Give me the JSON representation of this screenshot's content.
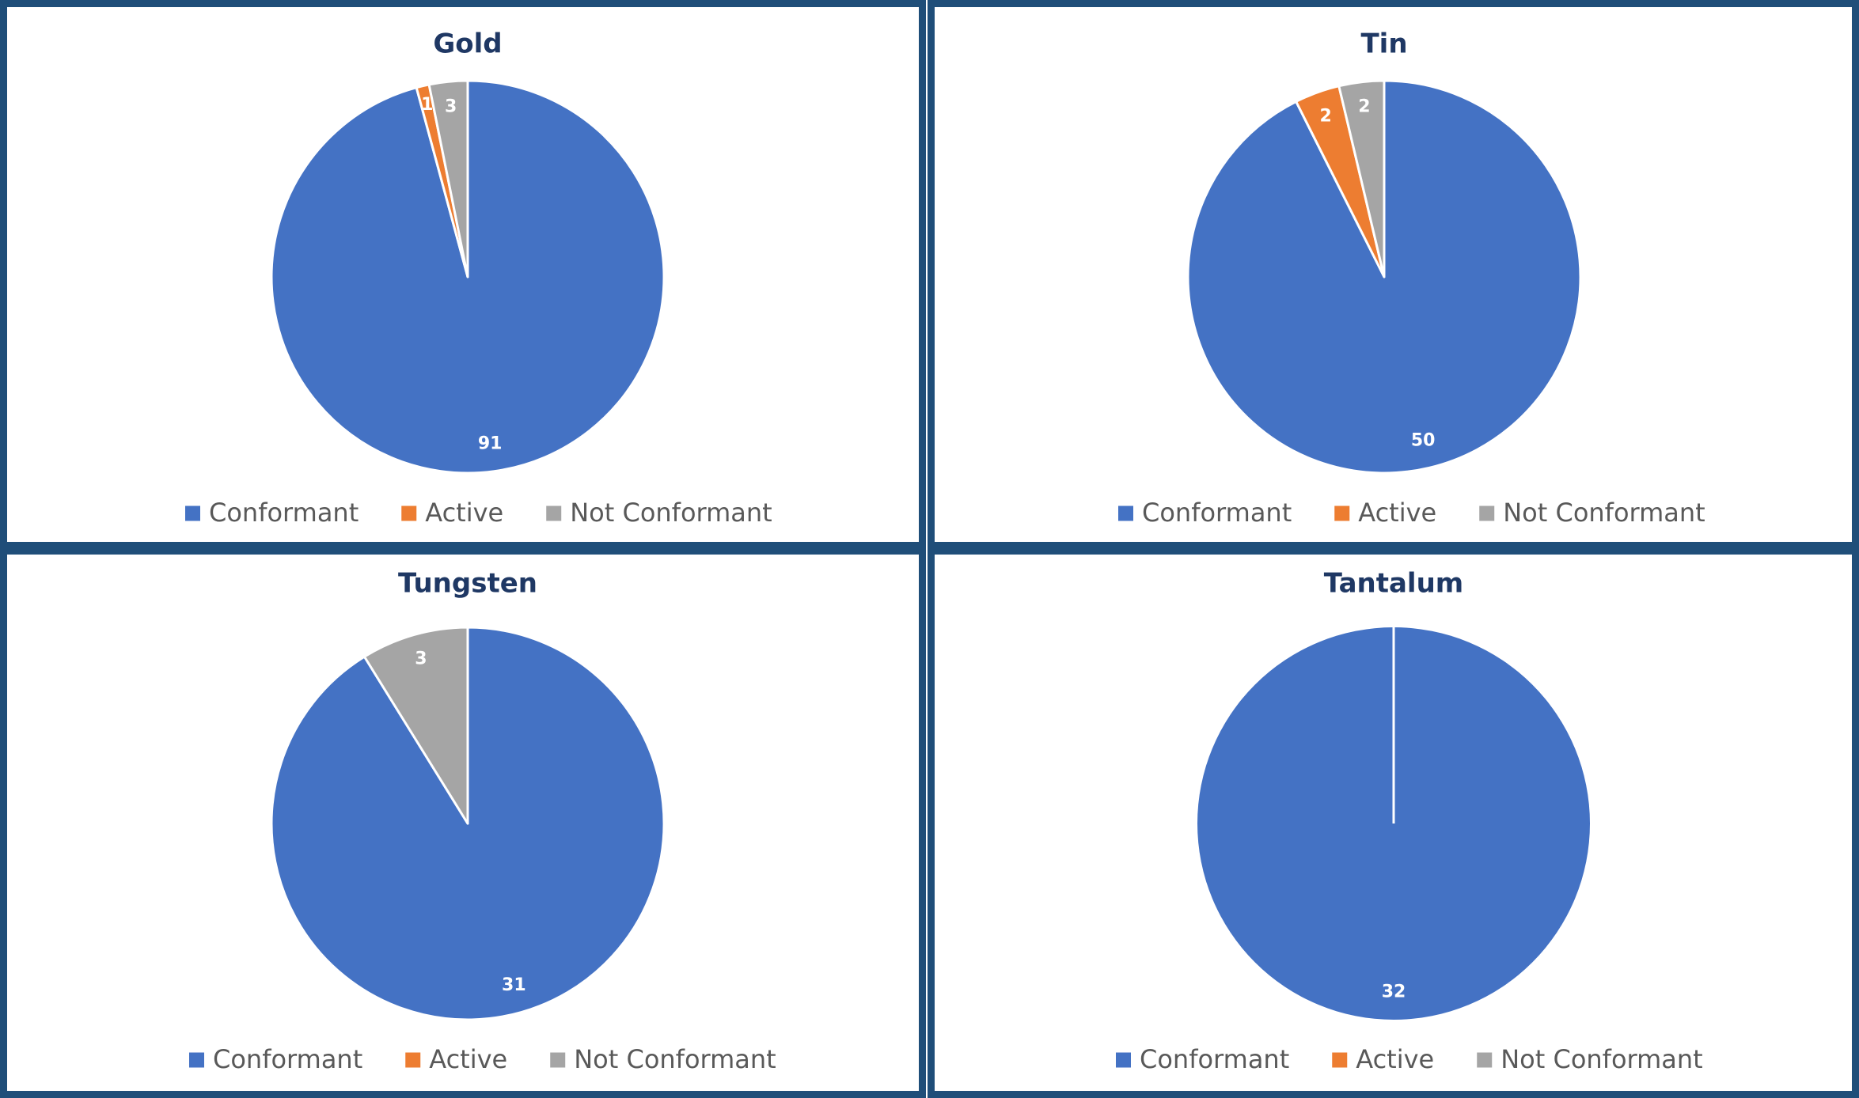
{
  "chart_data": [
    {
      "type": "pie",
      "title": "Gold",
      "categories": [
        "Conformant",
        "Active",
        "Not Conformant"
      ],
      "values": [
        91,
        1,
        3
      ],
      "colors": [
        "#4472c4",
        "#ed7d31",
        "#a5a5a5"
      ],
      "legend": "bottom"
    },
    {
      "type": "pie",
      "title": "Tin",
      "categories": [
        "Conformant",
        "Active",
        "Not Conformant"
      ],
      "values": [
        50,
        2,
        2
      ],
      "colors": [
        "#4472c4",
        "#ed7d31",
        "#a5a5a5"
      ],
      "legend": "bottom"
    },
    {
      "type": "pie",
      "title": "Tungsten",
      "categories": [
        "Conformant",
        "Active",
        "Not Conformant"
      ],
      "values": [
        31,
        0,
        3
      ],
      "colors": [
        "#4472c4",
        "#ed7d31",
        "#a5a5a5"
      ],
      "legend": "bottom"
    },
    {
      "type": "pie",
      "title": "Tantalum",
      "categories": [
        "Conformant",
        "Active",
        "Not Conformant"
      ],
      "values": [
        32,
        0,
        0
      ],
      "colors": [
        "#4472c4",
        "#ed7d31",
        "#a5a5a5"
      ],
      "legend": "bottom"
    }
  ]
}
